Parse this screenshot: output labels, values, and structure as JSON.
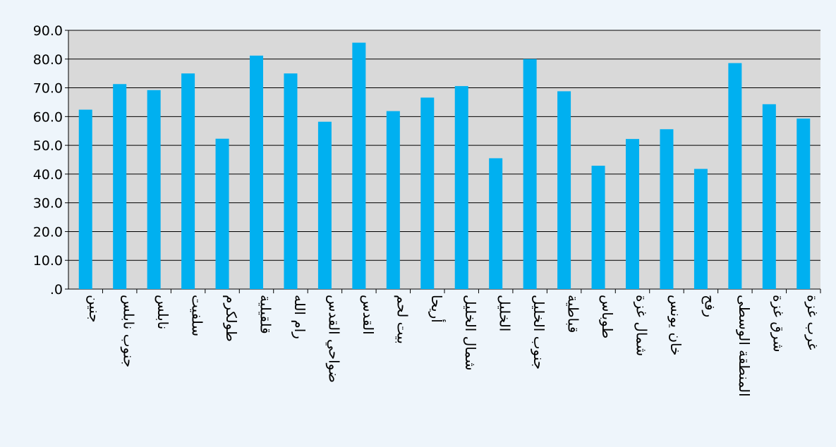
{
  "chart_data": {
    "type": "bar",
    "title": "",
    "xlabel": "",
    "ylabel": "",
    "ylim": [
      0,
      90
    ],
    "yticks": [
      ".0",
      "10.0",
      "20.0",
      "30.0",
      "40.0",
      "50.0",
      "60.0",
      "70.0",
      "80.0",
      "90.0"
    ],
    "grid": true,
    "legend": "none",
    "bar_color": "#00b0f0",
    "plot_background": "#d9d9d9",
    "page_background": "#eef5fb",
    "categories": [
      "جنين",
      "جنوب نابلس",
      "نابلس",
      "سلفيت",
      "طولكرم",
      "قلقيلية",
      "رام الله",
      "ضواحي القدس",
      "القدس",
      "بيت لحم",
      "أريحا",
      "شمال الخليل",
      "الخليل",
      "جنوب الخليل",
      "قباطية",
      "طوباس",
      "شمال غزة",
      "خان يونس",
      "رفح",
      "المنطقة الوسطى",
      "شرق غزة",
      "غرب غزة"
    ],
    "values": [
      62.4,
      71.3,
      69.2,
      75.0,
      52.3,
      81.2,
      75.0,
      58.2,
      85.7,
      61.9,
      66.6,
      70.6,
      45.5,
      80.0,
      68.8,
      42.9,
      52.2,
      55.6,
      41.8,
      78.6,
      64.3,
      59.3
    ]
  }
}
